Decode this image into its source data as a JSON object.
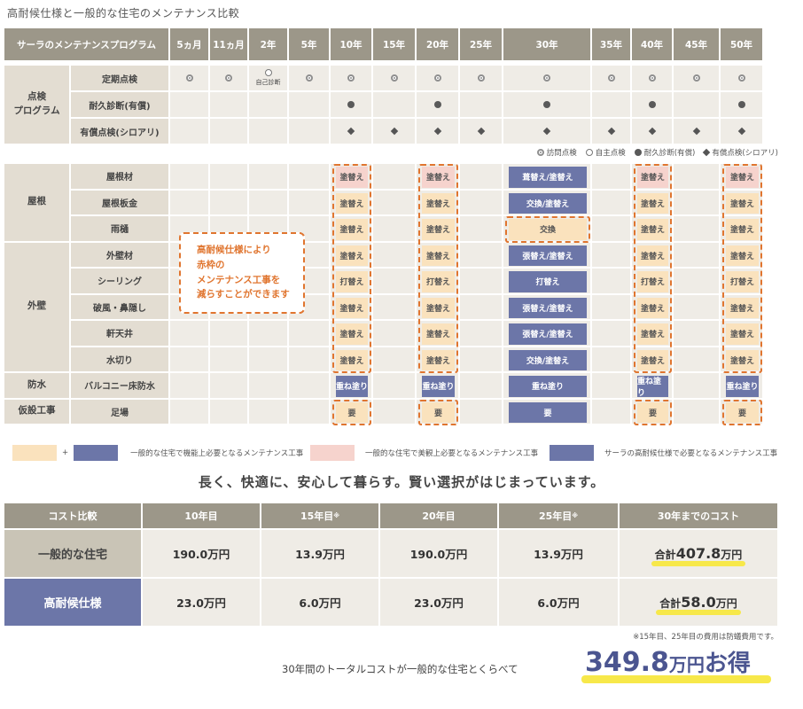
{
  "title": "高耐候仕様と一般的な住宅のメンテナンス比較",
  "schedule": {
    "corner": "サーラのメンテナンスプログラム",
    "years": [
      "5ヵ月",
      "11ヵ月",
      "2年",
      "5年",
      "10年",
      "15年",
      "20年",
      "25年",
      "30年",
      "35年",
      "40年",
      "45年",
      "50年"
    ],
    "program": {
      "group": "点検\nプログラム",
      "rows": [
        {
          "label": "定期点検",
          "cells": [
            "visit",
            "visit",
            "self",
            "visit",
            "visit",
            "visit",
            "visit",
            "visit",
            "visit",
            "visit",
            "visit",
            "visit",
            "visit"
          ]
        },
        {
          "label": "耐久診断(有償)",
          "cells": [
            "",
            "",
            "",
            "",
            "paid",
            "",
            "paid",
            "",
            "paid",
            "",
            "paid",
            "",
            "paid"
          ]
        },
        {
          "label": "有償点検(シロアリ)",
          "cells": [
            "",
            "",
            "",
            "",
            "dia",
            "dia",
            "dia",
            "dia",
            "dia",
            "dia",
            "dia",
            "dia",
            "dia"
          ]
        }
      ],
      "self_note": "自己診断"
    },
    "legend": {
      "visit": "訪問点検",
      "self": "自主点検",
      "paid": "耐久診断(有償)",
      "dia": "有償点検(シロアリ)"
    },
    "groups": [
      {
        "label": "屋根",
        "rows": [
          "屋根材",
          "屋根板金",
          "雨樋"
        ]
      },
      {
        "label": "外壁",
        "rows": [
          "外壁材",
          "シーリング",
          "破風・鼻隠し",
          "軒天井",
          "水切り"
        ]
      },
      {
        "label": "防水",
        "rows": [
          "バルコニー床防水"
        ]
      },
      {
        "label": "仮設工事",
        "rows": [
          "足場"
        ]
      }
    ],
    "work": {
      "y10": [
        "塗替え",
        "塗替え",
        "塗替え",
        "塗替え",
        "打替え",
        "塗替え",
        "塗替え",
        "塗替え",
        "重ね塗り",
        "要"
      ],
      "y20": [
        "塗替え",
        "塗替え",
        "塗替え",
        "塗替え",
        "打替え",
        "塗替え",
        "塗替え",
        "塗替え",
        "重ね塗り",
        "要"
      ],
      "y30": [
        "葺替え/塗替え",
        "交換/塗替え",
        "交換",
        "張替え/塗替え",
        "打替え",
        "張替え/塗替え",
        "張替え/塗替え",
        "交換/塗替え",
        "重ね塗り",
        "要"
      ],
      "y40": [
        "塗替え",
        "塗替え",
        "塗替え",
        "塗替え",
        "打替え",
        "塗替え",
        "塗替え",
        "塗替え",
        "重ね塗り",
        "要"
      ],
      "y50": [
        "塗替え",
        "塗替え",
        "塗替え",
        "塗替え",
        "打替え",
        "塗替え",
        "塗替え",
        "塗替え",
        "重ね塗り",
        "要"
      ]
    },
    "callout": [
      "高耐候仕様により",
      "赤枠の",
      "メンテナンス工事を",
      "減らすことができます"
    ]
  },
  "legend2": {
    "plus": "+",
    "functional": "一般的な住宅で機能上必要となるメンテナンス工事",
    "aesthetic": "一般的な住宅で美観上必要となるメンテナンス工事",
    "sala": "サーラの高耐候仕様で必要となるメンテナンス工事"
  },
  "tagline": "長く、快適に、安心して暮らす。賢い選択がはじまっています。",
  "cost": {
    "headers": [
      "コスト比較",
      "10年目",
      "15年目",
      "20年目",
      "25年目",
      "30年までのコスト"
    ],
    "header_marks": [
      "",
      "",
      "※",
      "",
      "※",
      ""
    ],
    "general": {
      "label": "一般的な住宅",
      "values": [
        "190.0万円",
        "13.9万円",
        "190.0万円",
        "13.9万円"
      ],
      "total_prefix": "合計",
      "total_num": "407.8",
      "total_unit": "万円"
    },
    "high": {
      "label": "高耐候仕様",
      "values": [
        "23.0万円",
        "6.0万円",
        "23.0万円",
        "6.0万円"
      ],
      "total_prefix": "合計",
      "total_num": "58.0",
      "total_unit": "万円"
    },
    "note": "※15年目、25年目の費用は防蟻費用です。"
  },
  "bottom": {
    "text": "30年間のトータルコストが一般的な住宅とくらべて",
    "num": "349.8",
    "unit": "万円",
    "suffix": "お得"
  },
  "colors": {
    "header": "#9c9789",
    "pink": "#f6d3cd",
    "yellow": "#fae2bd",
    "blue": "#6c76a8",
    "orange_dash": "#e0752f",
    "highlight": "#f7e84a"
  }
}
